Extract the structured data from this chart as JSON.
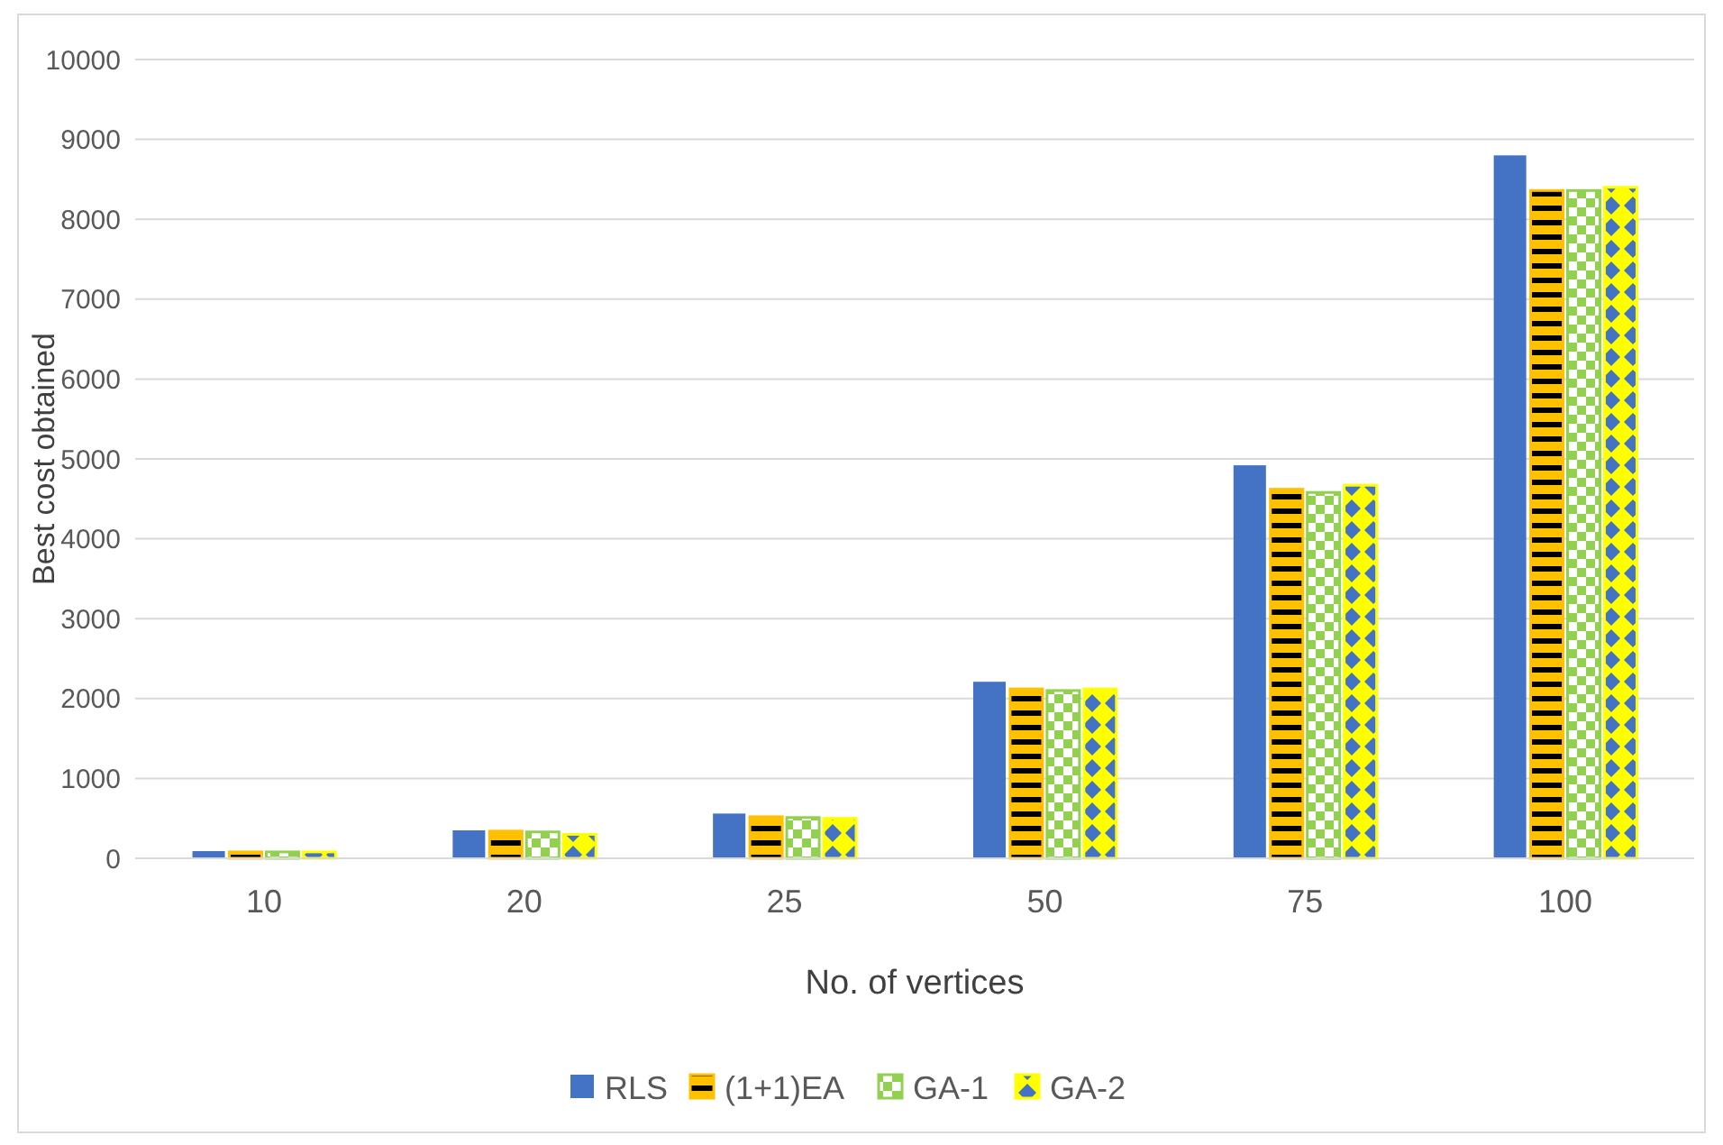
{
  "chart_data": {
    "type": "bar",
    "xlabel": "No. of vertices",
    "ylabel": "Best cost obtained",
    "categories": [
      "10",
      "20",
      "25",
      "50",
      "75",
      "100"
    ],
    "series": [
      {
        "name": "RLS",
        "color": "#4472c4",
        "values": [
          90,
          350,
          560,
          2210,
          4920,
          8800
        ]
      },
      {
        "name": "(1+1)EA",
        "color": "#ffc000",
        "values": [
          80,
          340,
          520,
          2120,
          4620,
          8360
        ]
      },
      {
        "name": "GA-1",
        "color": "#92d050",
        "values": [
          80,
          330,
          510,
          2100,
          4580,
          8360
        ]
      },
      {
        "name": "GA-2",
        "color": "#ffff00",
        "values": [
          80,
          300,
          500,
          2120,
          4670,
          8400
        ]
      }
    ],
    "ylim": [
      0,
      10000
    ],
    "yticks": [
      0,
      1000,
      2000,
      3000,
      4000,
      5000,
      6000,
      7000,
      8000,
      9000,
      10000
    ],
    "grid": "y",
    "legend": "bottom"
  }
}
